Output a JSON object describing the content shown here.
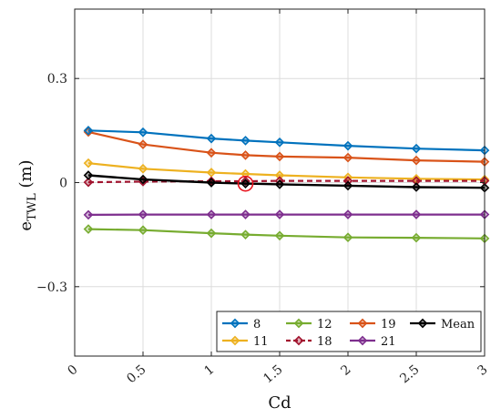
{
  "chart_data": {
    "type": "line",
    "xlabel": "Cd",
    "ylabel_main": "e",
    "ylabel_sub": "TWL",
    "ylabel_unit": " (m)",
    "xlim": [
      0,
      3
    ],
    "ylim": [
      -0.5,
      0.5
    ],
    "xticks": [
      0,
      0.5,
      1,
      1.5,
      2,
      2.5,
      3
    ],
    "xtick_labels": [
      "0",
      "0.5",
      "1",
      "1.5",
      "2",
      "2.5",
      "3"
    ],
    "yticks": [
      -0.3,
      0,
      0.3
    ],
    "ytick_labels": [
      "−0.3",
      "0",
      "0.3"
    ],
    "grid": true,
    "legend_position": "bottom-right",
    "x": [
      0.1,
      0.5,
      1.0,
      1.25,
      1.5,
      2.0,
      2.5,
      3.0
    ],
    "series": [
      {
        "name": "8",
        "color": "#0072BD",
        "values": [
          0.15,
          0.145,
          0.127,
          0.121,
          0.116,
          0.106,
          0.098,
          0.093
        ]
      },
      {
        "name": "11",
        "color": "#EDB120",
        "values": [
          0.056,
          0.04,
          0.029,
          0.025,
          0.021,
          0.015,
          0.011,
          0.009
        ]
      },
      {
        "name": "12",
        "color": "#77AC30",
        "values": [
          -0.134,
          -0.137,
          -0.146,
          -0.15,
          -0.153,
          -0.158,
          -0.159,
          -0.161
        ]
      },
      {
        "name": "18",
        "color": "#A2142F",
        "dashed": true,
        "values": [
          0.001,
          0.003,
          0.004,
          0.004,
          0.005,
          0.005,
          0.005,
          0.005
        ]
      },
      {
        "name": "19",
        "color": "#D95319",
        "values": [
          0.146,
          0.11,
          0.086,
          0.079,
          0.075,
          0.072,
          0.064,
          0.06
        ]
      },
      {
        "name": "21",
        "color": "#7E2F8E",
        "values": [
          -0.093,
          -0.092,
          -0.092,
          -0.092,
          -0.092,
          -0.092,
          -0.092,
          -0.092
        ]
      },
      {
        "name": "Mean",
        "color": "#000000",
        "values": [
          0.021,
          0.009,
          0.0,
          -0.003,
          -0.005,
          -0.009,
          -0.013,
          -0.015
        ]
      }
    ],
    "highlight": {
      "x": 1.25,
      "y": -0.003,
      "color": "#E8141E"
    },
    "legend_order": [
      "8",
      "12",
      "19",
      "Mean",
      "11",
      "18",
      "21"
    ]
  }
}
